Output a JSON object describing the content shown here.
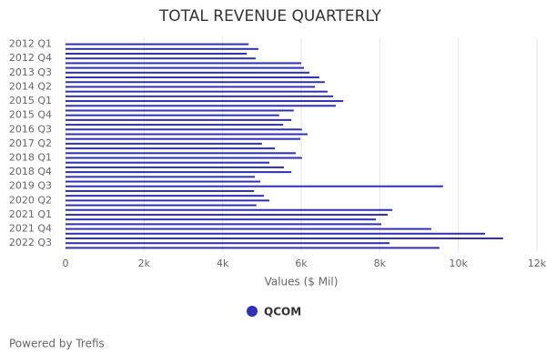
{
  "chart_data": {
    "type": "bar",
    "orientation": "horizontal",
    "title": "TOTAL REVENUE QUARTERLY",
    "categories": [
      "2012 Q1",
      null,
      null,
      "2012 Q4",
      null,
      null,
      "2013 Q3",
      null,
      null,
      "2014 Q2",
      null,
      null,
      "2015 Q1",
      null,
      null,
      "2015 Q4",
      null,
      null,
      "2016 Q3",
      null,
      null,
      "2017 Q2",
      null,
      null,
      "2018 Q1",
      null,
      null,
      "2018 Q4",
      null,
      null,
      "2019 Q3",
      null,
      null,
      "2020 Q2",
      null,
      null,
      "2021 Q1",
      null,
      null,
      "2021 Q4",
      null,
      null,
      "2022 Q3",
      null
    ],
    "series": [
      {
        "name": "QCOM",
        "color": "#2f2fb8",
        "values": [
          4660,
          4910,
          4610,
          4840,
          6000,
          6070,
          6210,
          6460,
          6600,
          6350,
          6670,
          6810,
          7070,
          6880,
          5810,
          5440,
          5750,
          5540,
          6020,
          6160,
          5980,
          5000,
          5330,
          5860,
          6020,
          5190,
          5560,
          5750,
          4820,
          4960,
          9610,
          4800,
          5050,
          5190,
          4860,
          8320,
          8200,
          7900,
          8040,
          9310,
          10680,
          11140,
          8250,
          9520
        ]
      }
    ],
    "xlabel": "Values ($ Mil)",
    "xlim": [
      0,
      12000
    ],
    "xticks": [
      0,
      {
        "value": 2000,
        "label": "2k"
      },
      {
        "value": 4000,
        "label": "4k"
      },
      {
        "value": 6000,
        "label": "6k"
      },
      {
        "value": 8000,
        "label": "8k"
      },
      {
        "value": 10000,
        "label": "10k"
      },
      {
        "value": 12000,
        "label": "12k"
      }
    ],
    "grid": true,
    "legend": "bottom",
    "footer": "Powered by Trefis"
  }
}
